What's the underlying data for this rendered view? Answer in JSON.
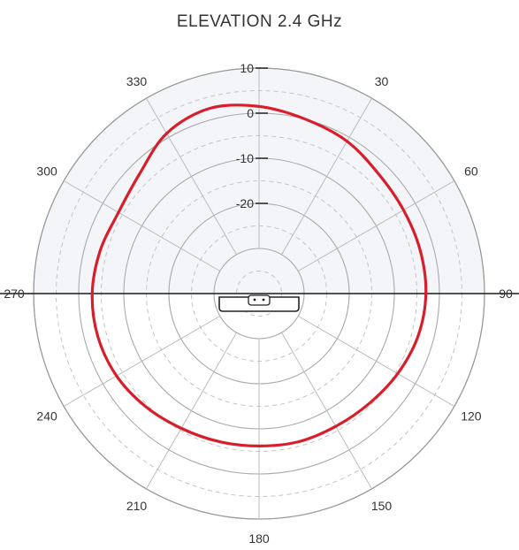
{
  "chart_data": {
    "type": "polar",
    "title": "ELEVATION 2.4 GHz",
    "angle_ticks": [
      0,
      30,
      60,
      90,
      120,
      150,
      180,
      210,
      240,
      270,
      300,
      330
    ],
    "angle_tick_labels": [
      "",
      "30",
      "60",
      "90",
      "120",
      "150",
      "180",
      "210",
      "240",
      "270",
      "300",
      "330"
    ],
    "radial_ticks": [
      10,
      0,
      -10,
      -20
    ],
    "radial_tick_labels": [
      "10",
      "0",
      "-10",
      "-20"
    ],
    "r_range": [
      -40,
      10
    ],
    "grid": true,
    "colors": {
      "trace": "#d81e2b",
      "grid": "#b9b9b9",
      "upper_fill": "#f3f5f9"
    },
    "series": [
      {
        "angles_deg": [
          0,
          15,
          30,
          45,
          60,
          75,
          90,
          105,
          120,
          135,
          150,
          165,
          180,
          195,
          210,
          225,
          240,
          255,
          270,
          285,
          300,
          315,
          330,
          345,
          360
        ],
        "gain_db": [
          1.5,
          0.0,
          -1.0,
          -2.5,
          -3.0,
          -3.0,
          -3.0,
          -3.5,
          -4.5,
          -5.5,
          -6.0,
          -6.0,
          -6.2,
          -6.0,
          -5.5,
          -4.5,
          -3.5,
          -3.0,
          -3.0,
          -3.5,
          -4.0,
          -2.5,
          1.0,
          2.5,
          1.5
        ]
      }
    ]
  }
}
